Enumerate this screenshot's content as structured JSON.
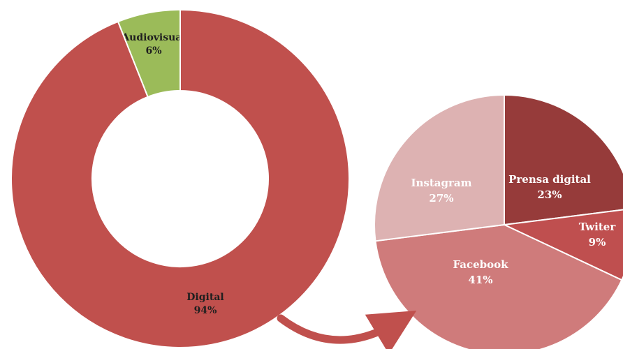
{
  "chart_data": [
    {
      "type": "donut",
      "title": "",
      "categories": [
        "Audiovisual",
        "Digital"
      ],
      "values": [
        6,
        94
      ],
      "value_labels": [
        "6%",
        "94%"
      ],
      "colors": [
        "#9bbb59",
        "#c0504d"
      ],
      "label_colors": [
        "#1f1f1f",
        "#1f1f1f"
      ],
      "start": "12 o'clock",
      "direction": "counterclockwise",
      "legend": "none"
    },
    {
      "type": "pie",
      "title": "",
      "categories": [
        "Prensa digital",
        "Twiter",
        "Facebook",
        "Instagram"
      ],
      "values": [
        23,
        9,
        41,
        27
      ],
      "value_labels": [
        "23%",
        "9%",
        "41%",
        "27%"
      ],
      "colors": [
        "#963b3a",
        "#bf4f4f",
        "#cf7b7b",
        "#ddb2b2"
      ],
      "label_colors": [
        "#ffffff",
        "#ffffff",
        "#ffffff",
        "#ffffff"
      ],
      "start": "12 o'clock",
      "direction": "clockwise",
      "legend": "none"
    }
  ],
  "connector": {
    "from": "Digital",
    "to": "breakdown pie",
    "color": "#c0504d"
  }
}
